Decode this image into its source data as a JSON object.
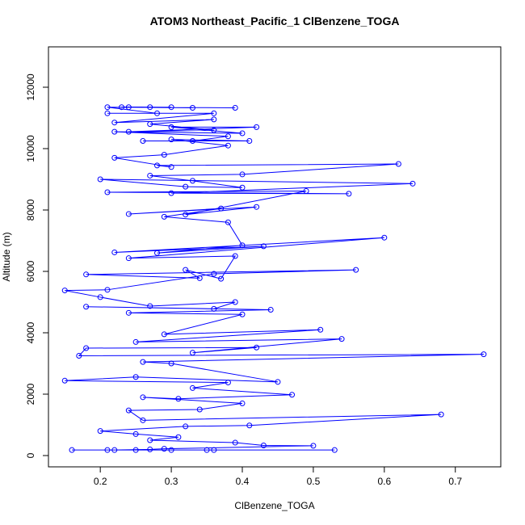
{
  "chart_data": {
    "type": "line",
    "markers": true,
    "title": "ATOM3 Northeast_Pacific_1 ClBenzene_TOGA",
    "x_label": "ClBenzene_TOGA",
    "y_label": "Altitude (m)",
    "color": "#0000ff",
    "x": [
      0.16,
      0.21,
      0.25,
      0.3,
      0.35,
      0.53,
      0.36,
      0.22,
      0.27,
      0.29,
      0.5,
      0.43,
      0.39,
      0.27,
      0.31,
      0.25,
      0.2,
      0.32,
      0.41,
      0.68,
      0.26,
      0.24,
      0.34,
      0.4,
      0.26,
      0.31,
      0.47,
      0.33,
      0.38,
      0.15,
      0.25,
      0.45,
      0.3,
      0.26,
      0.74,
      0.17,
      0.18,
      0.42,
      0.33,
      0.54,
      0.25,
      0.51,
      0.29,
      0.4,
      0.24,
      0.44,
      0.18,
      0.36,
      0.39,
      0.27,
      0.2,
      0.15,
      0.21,
      0.36,
      0.56,
      0.18,
      0.34,
      0.32,
      0.37,
      0.39,
      0.24,
      0.6,
      0.22,
      0.43,
      0.28,
      0.4,
      0.38,
      0.29,
      0.37,
      0.24,
      0.42,
      0.32,
      0.49,
      0.21,
      0.55,
      0.3,
      0.64,
      0.2,
      0.32,
      0.4,
      0.33,
      0.27,
      0.4,
      0.62,
      0.28,
      0.3,
      0.22,
      0.29,
      0.38,
      0.3,
      0.41,
      0.26,
      0.33,
      0.38,
      0.22,
      0.4,
      0.3,
      0.42,
      0.24,
      0.36,
      0.27,
      0.36,
      0.22,
      0.36,
      0.21,
      0.28,
      0.21,
      0.39,
      0.23,
      0.33,
      0.27,
      0.3,
      0.24
    ],
    "values": [
      180,
      180,
      180,
      180,
      180,
      180,
      180,
      180,
      200,
      220,
      320,
      330,
      420,
      500,
      600,
      700,
      800,
      950,
      980,
      1340,
      1150,
      1470,
      1500,
      1700,
      1900,
      1850,
      1980,
      2200,
      2380,
      2440,
      2560,
      2400,
      3000,
      3050,
      3300,
      3250,
      3500,
      3520,
      3350,
      3800,
      3700,
      4100,
      3950,
      4600,
      4650,
      4750,
      4850,
      4780,
      5000,
      4870,
      5160,
      5380,
      5400,
      5920,
      6050,
      5900,
      5780,
      6050,
      5760,
      6500,
      6430,
      7100,
      6620,
      6820,
      6600,
      6850,
      7600,
      7780,
      8050,
      7870,
      8100,
      7850,
      8620,
      8580,
      8530,
      8550,
      8860,
      9000,
      8760,
      8730,
      8950,
      9120,
      9160,
      9500,
      9450,
      9400,
      9700,
      9800,
      10100,
      10300,
      10250,
      10250,
      10250,
      10400,
      10550,
      10500,
      10700,
      10700,
      10550,
      10600,
      10800,
      10950,
      10850,
      11150,
      11150,
      11150,
      11350,
      11330,
      11350,
      11330,
      11350,
      11350,
      11350
    ],
    "xlim": [
      0.127,
      0.764
    ],
    "ylim": [
      -368,
      13316
    ],
    "xticks": [
      0.2,
      0.3,
      0.4,
      0.5,
      0.6,
      0.7
    ],
    "yticks": [
      0,
      2000,
      4000,
      6000,
      8000,
      10000,
      12000
    ]
  }
}
